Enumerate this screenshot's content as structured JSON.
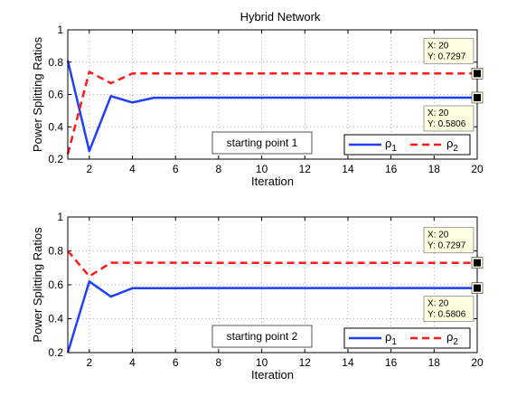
{
  "figure": {
    "title": "Hybrid Network"
  },
  "chart_data": [
    {
      "type": "line",
      "title": "Hybrid Network",
      "xlabel": "Iteration",
      "ylabel": "Power Splitting Ratios",
      "xlim": [
        1,
        20
      ],
      "ylim": [
        0.2,
        1
      ],
      "xticks": [
        2,
        4,
        6,
        8,
        10,
        12,
        14,
        16,
        18,
        20
      ],
      "yticks": [
        0.2,
        0.4,
        0.6,
        0.8,
        1
      ],
      "ytick_labels": [
        "0.2",
        "0.4",
        "0.6",
        "0.8",
        "1"
      ],
      "grid": true,
      "legend": "bottom-right",
      "annotation": "starting point 1",
      "x": [
        1,
        2,
        3,
        4,
        5,
        6,
        7,
        8,
        9,
        10,
        11,
        12,
        13,
        14,
        15,
        16,
        17,
        18,
        19,
        20
      ],
      "series": [
        {
          "name": "ρ1",
          "color": "#1f3fff",
          "style": "solid",
          "values": [
            0.81,
            0.25,
            0.59,
            0.55,
            0.58,
            0.58,
            0.5806,
            0.5806,
            0.5806,
            0.5806,
            0.5806,
            0.5806,
            0.5806,
            0.5806,
            0.5806,
            0.5806,
            0.5806,
            0.5806,
            0.5806,
            0.5806
          ]
        },
        {
          "name": "ρ2",
          "color": "#ff1a1a",
          "style": "dashed",
          "values": [
            0.23,
            0.74,
            0.67,
            0.73,
            0.73,
            0.73,
            0.7297,
            0.7297,
            0.7297,
            0.7297,
            0.7297,
            0.7297,
            0.7297,
            0.7297,
            0.7297,
            0.7297,
            0.7297,
            0.7297,
            0.7297,
            0.7297
          ]
        }
      ],
      "datatips": [
        {
          "series": "ρ2",
          "x_label": "X: 20",
          "y_label": "Y: 0.7297",
          "x": 20,
          "y": 0.7297,
          "position": "above"
        },
        {
          "series": "ρ1",
          "x_label": "X: 20",
          "y_label": "Y: 0.5806",
          "x": 20,
          "y": 0.5806,
          "position": "below"
        }
      ]
    },
    {
      "type": "line",
      "xlabel": "Iteration",
      "ylabel": "Power Splitting Ratios",
      "xlim": [
        1,
        20
      ],
      "ylim": [
        0.2,
        1
      ],
      "xticks": [
        2,
        4,
        6,
        8,
        10,
        12,
        14,
        16,
        18,
        20
      ],
      "yticks": [
        0.2,
        0.4,
        0.6,
        0.8,
        1
      ],
      "ytick_labels": [
        "0.2",
        "0.4",
        "0.6",
        "0.8",
        "1"
      ],
      "grid": true,
      "legend": "bottom-right",
      "annotation": "starting point 2",
      "x": [
        1,
        2,
        3,
        4,
        5,
        6,
        7,
        8,
        9,
        10,
        11,
        12,
        13,
        14,
        15,
        16,
        17,
        18,
        19,
        20
      ],
      "series": [
        {
          "name": "ρ1",
          "color": "#1f3fff",
          "style": "solid",
          "values": [
            0.2,
            0.62,
            0.53,
            0.58,
            0.58,
            0.58,
            0.5806,
            0.5806,
            0.5806,
            0.5806,
            0.5806,
            0.5806,
            0.5806,
            0.5806,
            0.5806,
            0.5806,
            0.5806,
            0.5806,
            0.5806,
            0.5806
          ]
        },
        {
          "name": "ρ2",
          "color": "#ff1a1a",
          "style": "dashed",
          "values": [
            0.8,
            0.65,
            0.73,
            0.73,
            0.73,
            0.73,
            0.7297,
            0.7297,
            0.7297,
            0.7297,
            0.7297,
            0.7297,
            0.7297,
            0.7297,
            0.7297,
            0.7297,
            0.7297,
            0.7297,
            0.7297,
            0.7297
          ]
        }
      ],
      "datatips": [
        {
          "series": "ρ2",
          "x_label": "X: 20",
          "y_label": "Y: 0.7297",
          "x": 20,
          "y": 0.7297,
          "position": "above"
        },
        {
          "series": "ρ1",
          "x_label": "X: 20",
          "y_label": "Y: 0.5806",
          "x": 20,
          "y": 0.5806,
          "position": "below"
        }
      ]
    }
  ]
}
